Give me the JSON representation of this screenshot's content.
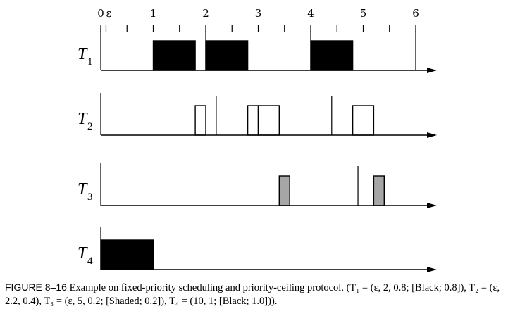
{
  "chart_data": {
    "type": "timeline",
    "x_ticks": [
      {
        "value": 0,
        "label": "0"
      },
      {
        "value": 0.1,
        "label": "ε"
      },
      {
        "value": 1,
        "label": "1"
      },
      {
        "value": 2,
        "label": "2"
      },
      {
        "value": 3,
        "label": "3"
      },
      {
        "value": 4,
        "label": "4"
      },
      {
        "value": 5,
        "label": "5"
      },
      {
        "value": 6,
        "label": "6"
      }
    ],
    "xlim": [
      0,
      6.4
    ],
    "tasks": [
      {
        "name": "T",
        "subscript": "1",
        "releases": [
          2,
          4,
          6
        ],
        "jobs": [
          {
            "start": 1.0,
            "end": 1.8,
            "fill": "black"
          },
          {
            "start": 2.0,
            "end": 2.8,
            "fill": "black"
          },
          {
            "start": 4.0,
            "end": 4.8,
            "fill": "black"
          }
        ]
      },
      {
        "name": "T",
        "subscript": "2",
        "releases": [
          2.2,
          4.4
        ],
        "jobs": [
          {
            "start": 1.8,
            "end": 2.0,
            "fill": "white"
          },
          {
            "start": 2.8,
            "end": 3.0,
            "fill": "white"
          },
          {
            "start": 3.0,
            "end": 3.4,
            "fill": "white"
          },
          {
            "start": 4.8,
            "end": 5.2,
            "fill": "white"
          }
        ]
      },
      {
        "name": "T",
        "subscript": "3",
        "releases": [
          4.9
        ],
        "jobs": [
          {
            "start": 3.4,
            "end": 3.6,
            "fill": "shaded"
          },
          {
            "start": 5.2,
            "end": 5.4,
            "fill": "shaded"
          }
        ]
      },
      {
        "name": "T",
        "subscript": "4",
        "releases": [],
        "jobs": [
          {
            "start": 0.0,
            "end": 1.0,
            "fill": "black"
          }
        ]
      }
    ],
    "colors": {
      "black": "#000000",
      "shaded": "#a6a6a6",
      "white": "#ffffff"
    }
  },
  "caption": {
    "figure_label": "FIGURE 8–16",
    "text": "Example on fixed-priority scheduling and priority-ceiling protocol. (T₁ = (ε, 2, 0.8; [Black; 0.8]), T₂ = (ε, 2.2, 0.4), T₃ = (ε, 5, 0.2; [Shaded; 0.2]), T₄ = (10, 1; [Black; 1.0]))."
  }
}
